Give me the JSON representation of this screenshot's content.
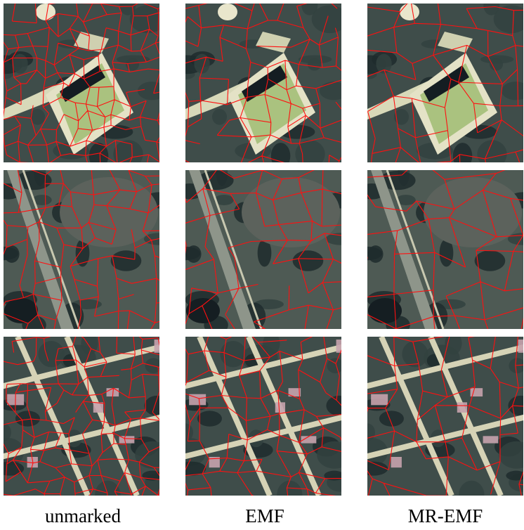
{
  "figure": {
    "labels": [
      "unmarked",
      "EMF",
      "MR-EMF"
    ]
  }
}
